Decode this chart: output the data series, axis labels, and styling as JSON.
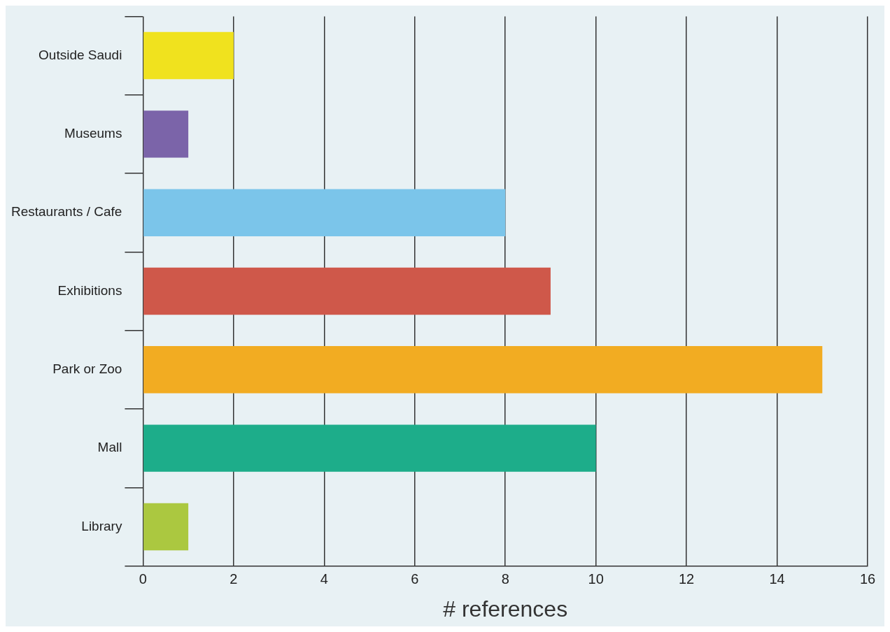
{
  "chart_data": {
    "type": "bar",
    "orientation": "horizontal",
    "xlabel": "# references",
    "categories": [
      "Outside Saudi",
      "Museums",
      "Restaurants / Cafe",
      "Exhibitions",
      "Park or Zoo",
      "Mall",
      "Library"
    ],
    "values": [
      2,
      1,
      8,
      9,
      15,
      10,
      1
    ],
    "colors": [
      "#f0e21e",
      "#7b64a9",
      "#7bc5ea",
      "#cf584a",
      "#f2ac22",
      "#1dad8a",
      "#abc840"
    ],
    "xlim": [
      0,
      16
    ],
    "xticks": [
      0,
      2,
      4,
      6,
      8,
      10,
      12,
      14,
      16
    ],
    "grid": "x",
    "legend": false
  }
}
